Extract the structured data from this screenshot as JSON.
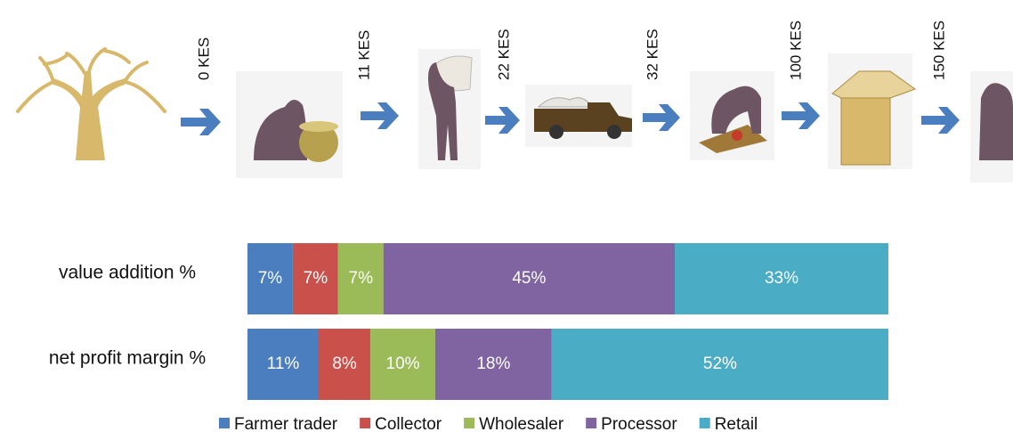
{
  "chart_data": {
    "type": "stacked-hbar",
    "annotations": [
      "0 KES",
      "11 KES",
      "22 KES",
      "32 KES",
      "100 KES",
      "150 KES"
    ],
    "categories": [
      "value addition  %",
      "net profit margin %"
    ],
    "series": [
      {
        "name": "Farmer trader",
        "color": "#4a7ebf",
        "values": [
          7,
          11
        ],
        "value_labels": [
          "7%",
          "11%"
        ]
      },
      {
        "name": "Collector",
        "color": "#c9504b",
        "values": [
          7,
          8
        ],
        "value_labels": [
          "7%",
          "8%"
        ]
      },
      {
        "name": "Wholesaler",
        "color": "#9bbb59",
        "values": [
          7,
          10
        ],
        "value_labels": [
          "7%",
          "10%"
        ]
      },
      {
        "name": "Processor",
        "color": "#8064a2",
        "values": [
          45,
          18
        ],
        "value_labels": [
          "45%",
          "18%"
        ]
      },
      {
        "name": "Retail",
        "color": "#4bacc6",
        "values": [
          33,
          52
        ],
        "value_labels": [
          "33%",
          "52%"
        ]
      }
    ],
    "legend": "bottom"
  }
}
